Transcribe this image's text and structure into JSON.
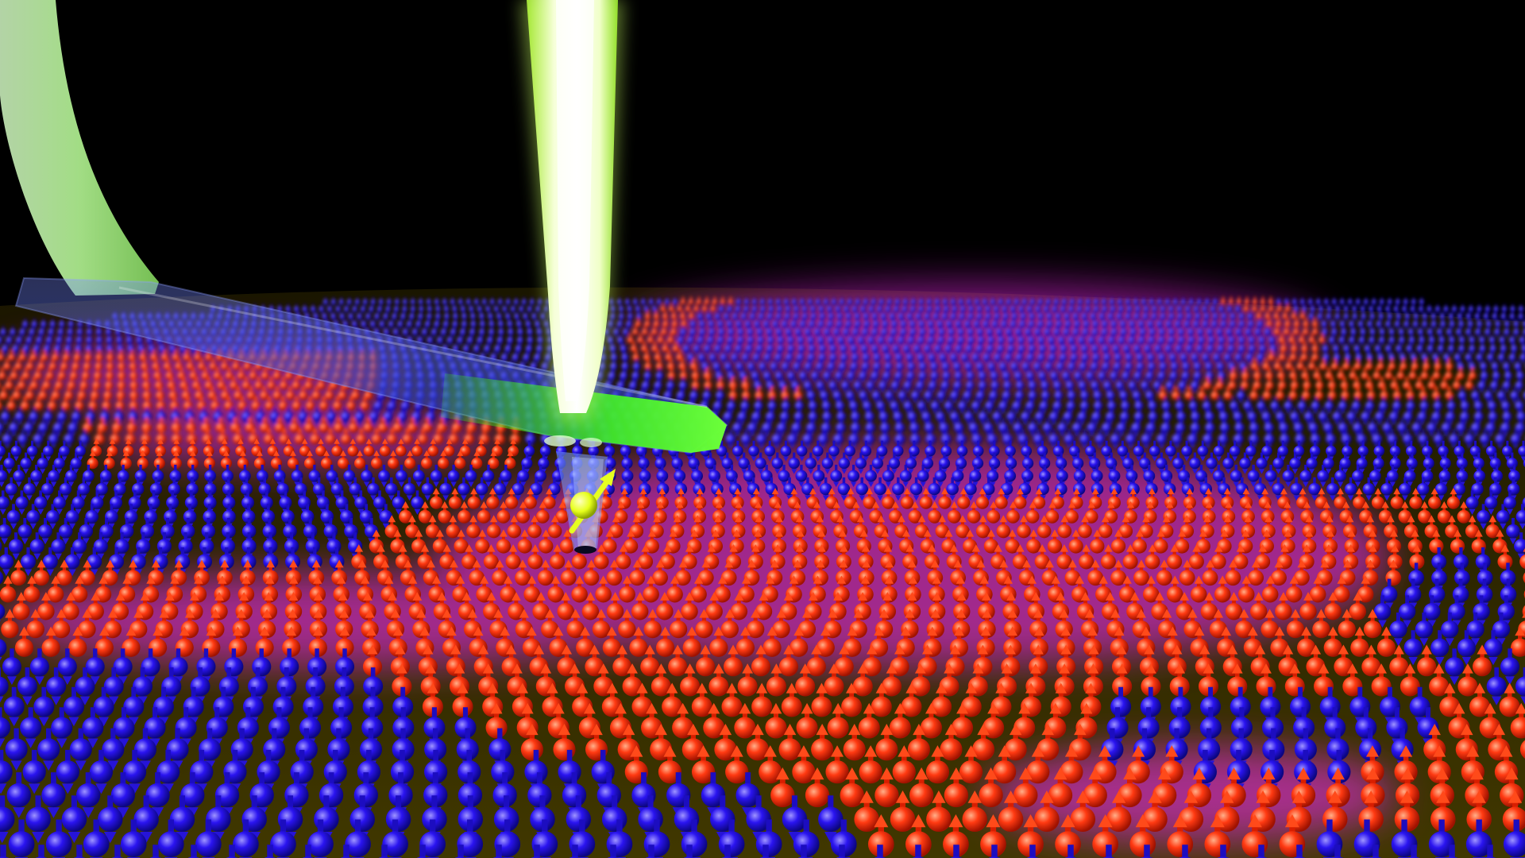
{
  "scene": {
    "background": "#000000",
    "colors": {
      "spin_up": "#ff2a0a",
      "spin_up_highlight": "#ff9a70",
      "spin_down": "#2a10e6",
      "spin_down_highlight": "#8a7bff",
      "substrate": "#c8b000",
      "glow_magenta": "#ff2bff",
      "laser_beam": "#f2ffd0",
      "laser_core": "#ffffff",
      "cantilever": "#39ff16",
      "ribbon": "#b5f59a",
      "tip_spin": "#e8ff20"
    },
    "elements": [
      "spin-lattice",
      "domain-walls",
      "atomic-force-cantilever",
      "laser-beam",
      "probe-tip",
      "probe-spin-arrow",
      "ribbon-beam"
    ]
  }
}
